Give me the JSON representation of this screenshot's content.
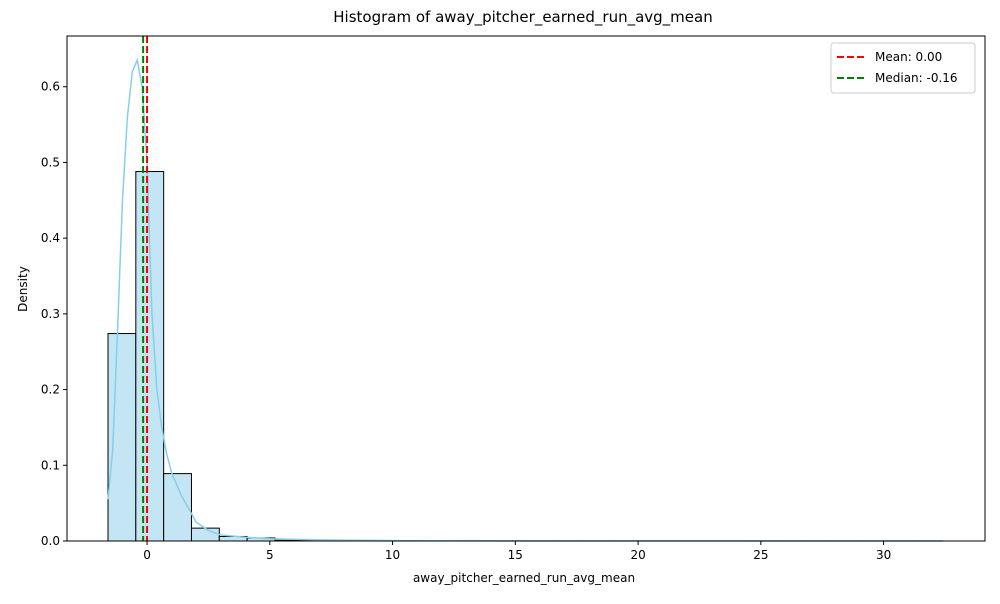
{
  "chart_data": {
    "type": "histogram",
    "title": "Histogram of away_pitcher_earned_run_avg_mean",
    "x_label": "away_pitcher_earned_run_avg_mean",
    "y_label": "Density",
    "bins": [
      -1.59,
      -0.457,
      0.677,
      1.81,
      2.943,
      4.077,
      5.21,
      6.343,
      7.477,
      8.61,
      9.743,
      10.877,
      12.01,
      13.143,
      14.277,
      15.41,
      16.543,
      17.677,
      18.81,
      19.943,
      21.077,
      22.21,
      23.343,
      24.477,
      25.61,
      26.743,
      27.877,
      29.01,
      30.143,
      31.277,
      32.41
    ],
    "values": [
      0.274,
      0.488,
      0.089,
      0.017,
      0.006,
      0.004,
      0.001,
      0.0006,
      0.0004,
      0.0003,
      0.0002,
      0.0001,
      0.0001,
      0.0001,
      0.0001,
      0.0001,
      0.0001,
      0.0001,
      0.0001,
      0.0001,
      0.0001,
      0.0001,
      0.0001,
      0.0001,
      0.0001,
      0.0001,
      0.0001,
      0.0001,
      0.0001,
      0.0001
    ],
    "color": "#c4e5f3",
    "edge_color": "#000000",
    "kde": {
      "color": "#87ceeb",
      "x": [
        -1.59,
        -1.4,
        -1.2,
        -1.0,
        -0.8,
        -0.6,
        -0.4,
        -0.2,
        0,
        0.2,
        0.4,
        0.6,
        0.8,
        1.0,
        1.4,
        2.0,
        2.5,
        3,
        4,
        5,
        7,
        10,
        15,
        20,
        32.4
      ],
      "y": [
        0.055,
        0.12,
        0.28,
        0.45,
        0.56,
        0.62,
        0.635,
        0.6,
        0.5,
        0.3,
        0.2,
        0.15,
        0.115,
        0.09,
        0.06,
        0.025,
        0.014,
        0.008,
        0.005,
        0.003,
        0.0015,
        0.0005,
        0.0002,
        0.0001,
        0
      ]
    },
    "lines": [
      {
        "name": "Mean: 0.00",
        "value": 0,
        "color": "#ff0000"
      },
      {
        "name": "Median: -0.16",
        "value": -0.16,
        "color": "#008000"
      }
    ],
    "xlim": [
      -3.26,
      34.13
    ],
    "ylim": [
      0,
      0.667
    ],
    "xticks": [
      0,
      5,
      10,
      15,
      20,
      25,
      30
    ],
    "yticks": [
      {
        "value": 0,
        "label": "0.0"
      },
      0.1,
      0.2,
      0.3,
      0.4,
      0.5,
      0.6
    ],
    "legend": "upper right"
  }
}
